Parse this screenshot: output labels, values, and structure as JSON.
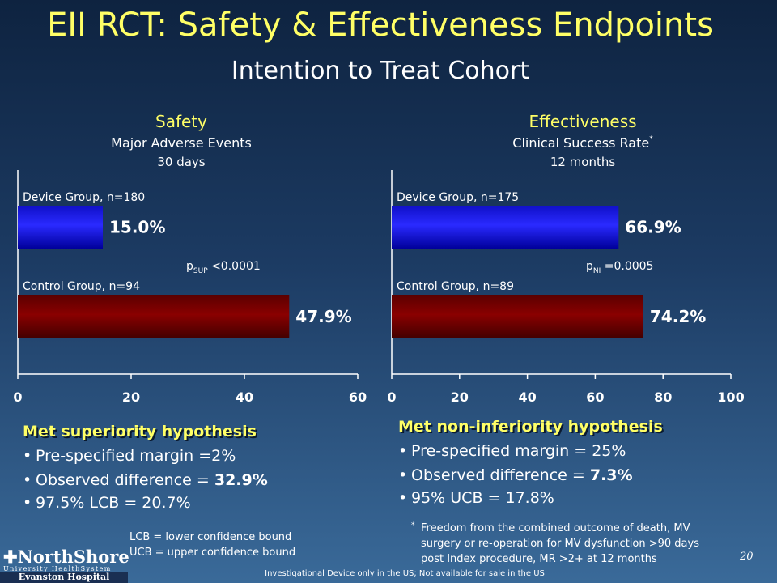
{
  "slide": {
    "title": "EII RCT: Safety & Effectiveness Endpoints",
    "subtitle": "Intention to Treat Cohort",
    "page_number": "20",
    "disclaimer": "Investigational Device only in the US; Not available for sale in the US",
    "logo": {
      "name": "NorthShore",
      "tagline": "University HealthSystem",
      "hospital": "Evanston Hospital"
    }
  },
  "safety": {
    "heading": "Safety",
    "metric": "Major Adverse Events",
    "timeframe": "30 days",
    "p_label": "p",
    "p_sub": "SUP",
    "p_value": "<0.0001",
    "hypothesis": "Met superiority hypothesis",
    "bullets": [
      {
        "text": "Pre-specified margin =2%",
        "bold": ""
      },
      {
        "text": "Observed difference = ",
        "bold": "32.9%"
      },
      {
        "text": "97.5% LCB = 20.7%",
        "bold": ""
      }
    ],
    "legend_lcb": "LCB = lower confidence bound",
    "legend_ucb": "UCB = upper confidence bound"
  },
  "effectiveness": {
    "heading": "Effectiveness",
    "metric": "Clinical Success Rate",
    "metric_mark": "*",
    "timeframe": "12 months",
    "p_label": "p",
    "p_sub": "NI",
    "p_value": "=0.0005",
    "hypothesis": "Met non-inferiority hypothesis",
    "bullets": [
      {
        "text": "Pre-specified margin = 25%",
        "bold": ""
      },
      {
        "text": "Observed difference = ",
        "bold": "7.3%"
      },
      {
        "text": "95% UCB = 17.8%",
        "bold": ""
      }
    ],
    "footnote_mark": "*",
    "footnote_lines": [
      "Freedom from the combined outcome of death, MV",
      "surgery or re-operation for MV dysfunction >90 days",
      "post Index procedure, MR >2+ at 12 months"
    ]
  },
  "colors": {
    "device_bar": "#0000ff",
    "control_bar": "#7a0000",
    "title": "#ffff66",
    "axis": "#ffffff"
  },
  "chart_data": [
    {
      "type": "bar",
      "orientation": "horizontal",
      "categories": [
        "Device Group, n=180",
        "Control Group, n=94"
      ],
      "values": [
        15.0,
        47.9
      ],
      "value_labels": [
        "15.0%",
        "47.9%"
      ],
      "xlim": [
        0,
        60
      ],
      "xticks": [
        "0",
        "20",
        "40",
        "60"
      ],
      "title": "Safety",
      "grid": false
    },
    {
      "type": "bar",
      "orientation": "horizontal",
      "categories": [
        "Device Group, n=175",
        "Control Group, n=89"
      ],
      "values": [
        66.9,
        74.2
      ],
      "value_labels": [
        "66.9%",
        "74.2%"
      ],
      "xlim": [
        0,
        100
      ],
      "xticks": [
        "0",
        "20",
        "40",
        "60",
        "80",
        "100"
      ],
      "title": "Effectiveness",
      "grid": false
    }
  ]
}
